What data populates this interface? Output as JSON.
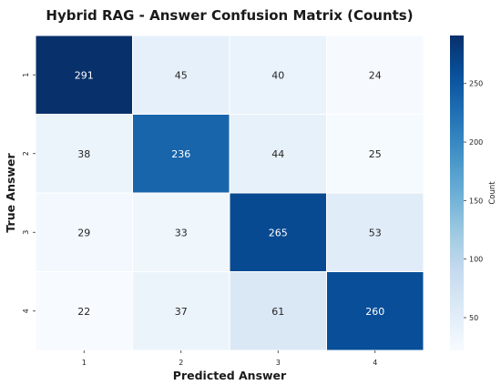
{
  "chart_data": {
    "type": "heatmap",
    "title": "Hybrid RAG - Answer Confusion Matrix (Counts)",
    "xlabel": "Predicted Answer",
    "ylabel": "True Answer",
    "x_categories": [
      "1",
      "2",
      "3",
      "4"
    ],
    "y_categories": [
      "1",
      "2",
      "3",
      "4"
    ],
    "values": [
      [
        291,
        45,
        40,
        24
      ],
      [
        38,
        236,
        44,
        25
      ],
      [
        29,
        33,
        265,
        53
      ],
      [
        22,
        37,
        61,
        260
      ]
    ],
    "colorbar": {
      "label": "Count",
      "range": [
        22,
        291
      ],
      "ticks": [
        "50",
        "100",
        "150",
        "200",
        "250"
      ],
      "tick_values": [
        50,
        100,
        150,
        200,
        250
      ],
      "colormap": "Blues"
    },
    "colors": {
      "low": "#f7fbff",
      "high": "#08306b"
    }
  }
}
